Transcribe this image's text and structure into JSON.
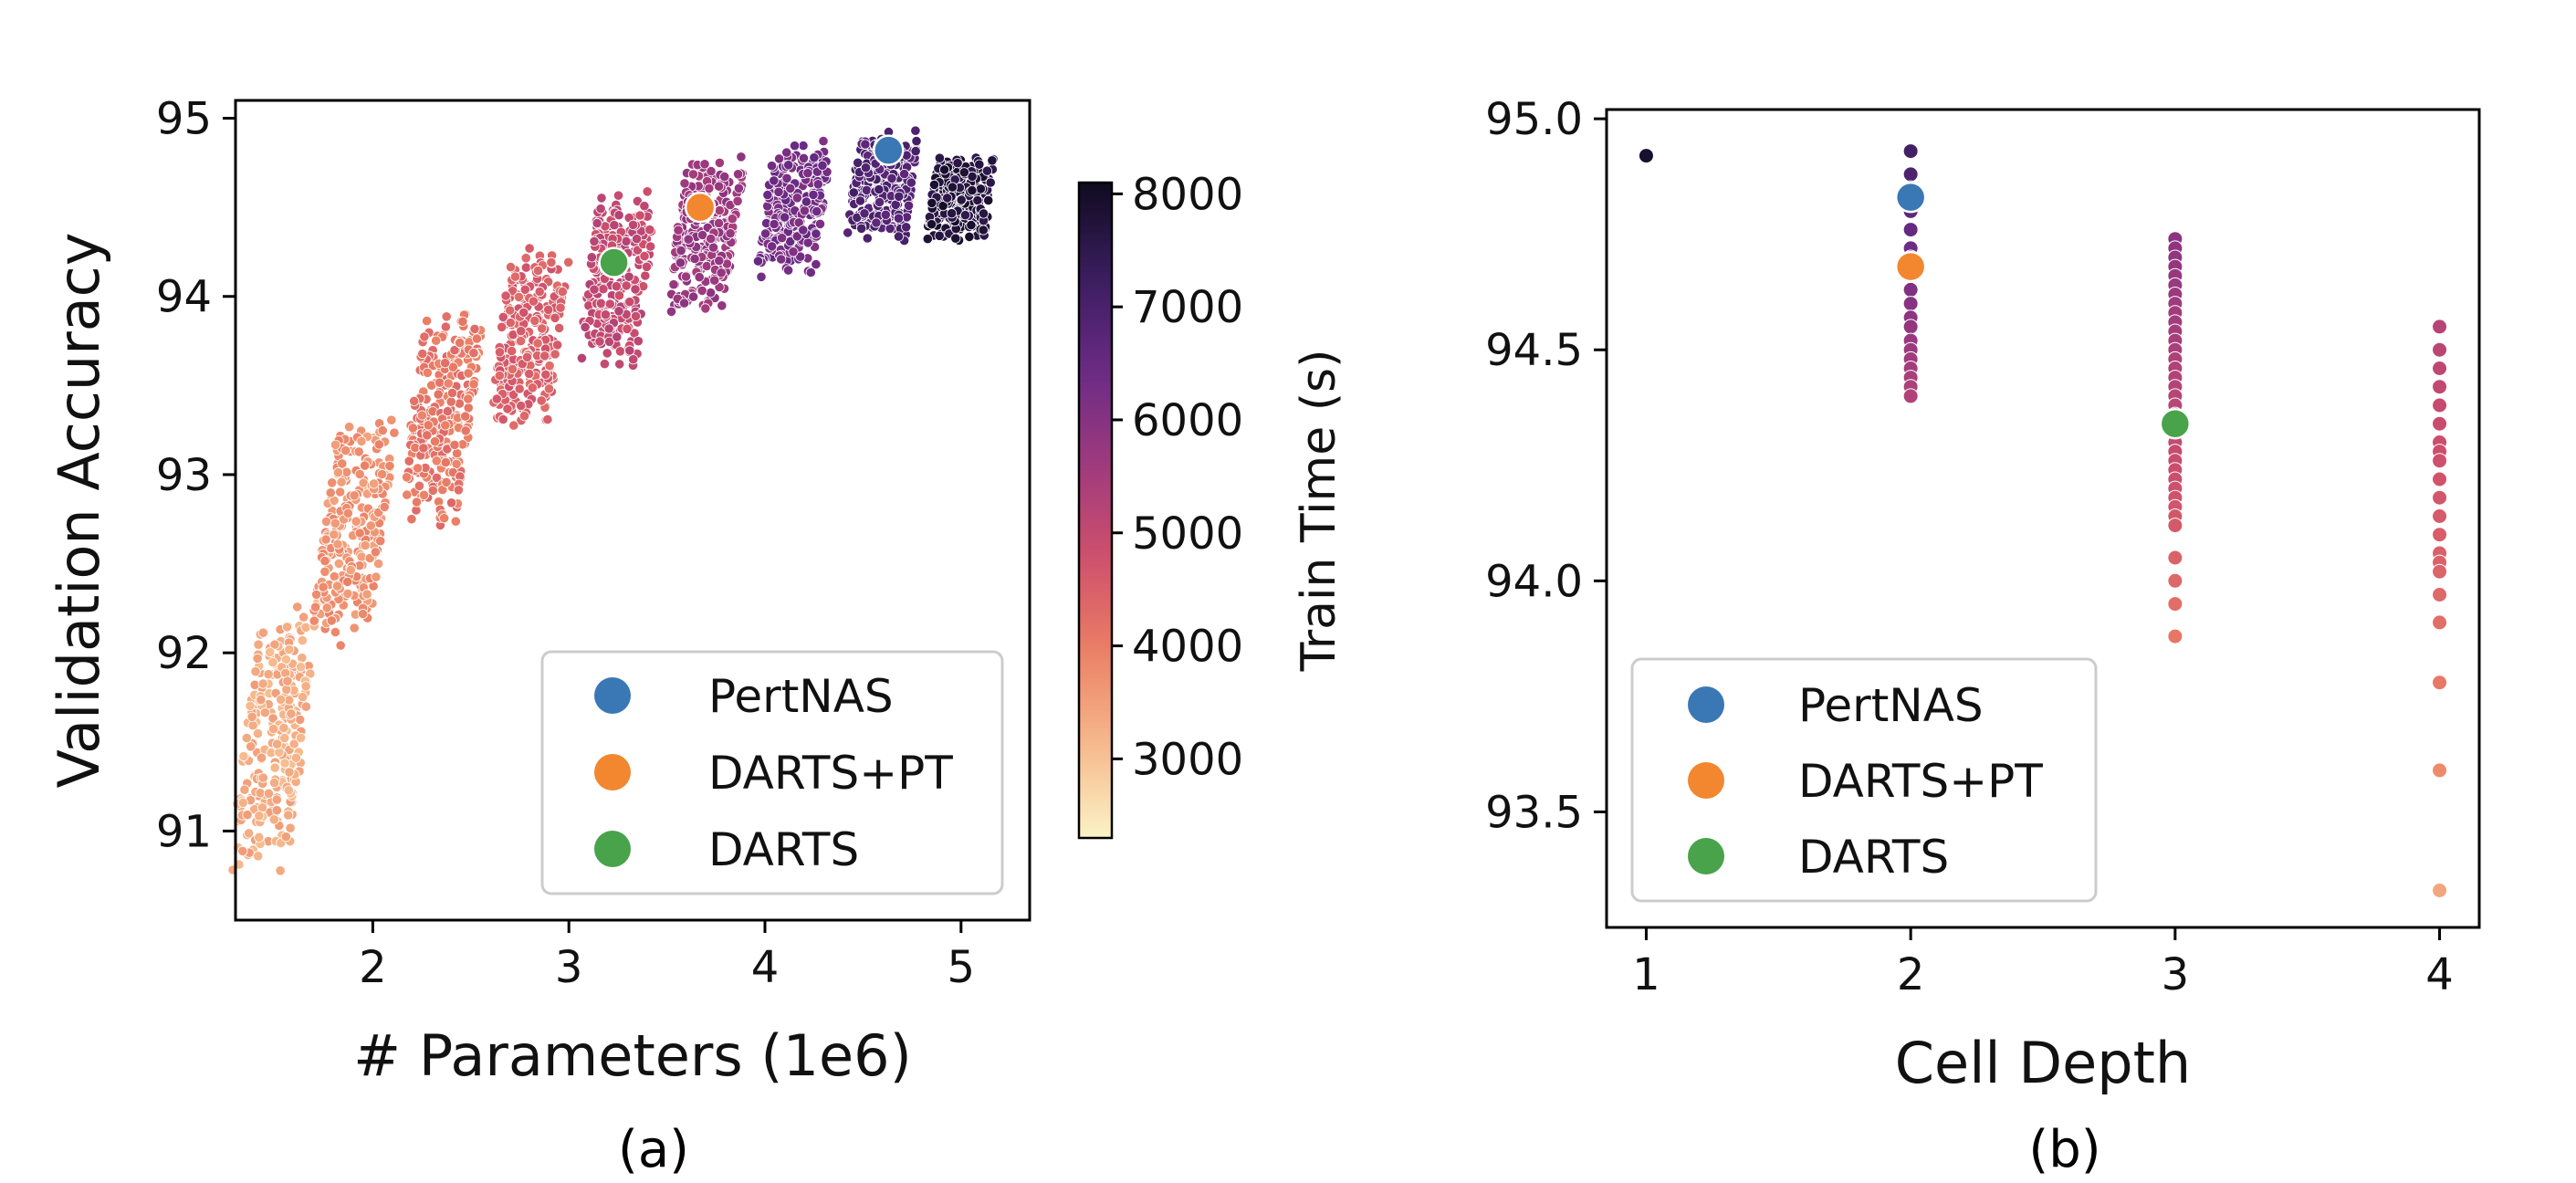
{
  "captions": [
    "(a)",
    "(b)"
  ],
  "chart_data": [
    {
      "type": "scatter",
      "title": "",
      "xlabel": "# Parameters (1e6)",
      "ylabel": "Validation Accuracy",
      "xlim": [
        1.3,
        5.35
      ],
      "ylim": [
        90.5,
        95.1
      ],
      "xticks": [
        2,
        3,
        4,
        5
      ],
      "yticks": [
        91,
        92,
        93,
        94,
        95
      ],
      "grid": false,
      "legend_placement": "lower-right",
      "colorbar": {
        "label": "Train Time (s)",
        "range": [
          2300,
          8100
        ],
        "ticks": [
          3000,
          4000,
          5000,
          6000,
          7000,
          8000
        ],
        "colormap": [
          "#fbf3c6",
          "#f6b98c",
          "#eb7f65",
          "#ce4f6c",
          "#9e3a7e",
          "#6a2a85",
          "#3a1d5e",
          "#0f0b1f"
        ]
      },
      "background_clusters": [
        {
          "x": 1.5,
          "y_min": 90.75,
          "y_max": 92.3,
          "time": 3300
        },
        {
          "x": 1.9,
          "y_min": 92.0,
          "y_max": 93.35,
          "time": 3700
        },
        {
          "x": 2.35,
          "y_min": 92.7,
          "y_max": 93.95,
          "time": 4100
        },
        {
          "x": 2.8,
          "y_min": 93.25,
          "y_max": 94.3,
          "time": 4500
        },
        {
          "x": 3.25,
          "y_min": 93.6,
          "y_max": 94.6,
          "time": 5000
        },
        {
          "x": 3.7,
          "y_min": 93.9,
          "y_max": 94.8,
          "time": 5700
        },
        {
          "x": 4.15,
          "y_min": 94.1,
          "y_max": 94.9,
          "time": 6300
        },
        {
          "x": 4.6,
          "y_min": 94.3,
          "y_max": 94.93,
          "time": 6900
        },
        {
          "x": 5.0,
          "y_min": 94.3,
          "y_max": 94.8,
          "time": 7700
        }
      ],
      "series": [
        {
          "name": "PertNAS",
          "color": "#3a78b5",
          "x": [
            4.63
          ],
          "y": [
            94.82
          ]
        },
        {
          "name": "DARTS+PT",
          "color": "#f2872f",
          "x": [
            3.67
          ],
          "y": [
            94.5
          ]
        },
        {
          "name": "DARTS",
          "color": "#48a34a",
          "x": [
            3.23
          ],
          "y": [
            94.19
          ]
        }
      ]
    },
    {
      "type": "scatter",
      "title": "",
      "xlabel": "Cell Depth",
      "ylabel": "",
      "xlim": [
        0.85,
        4.15
      ],
      "ylim": [
        93.25,
        95.02
      ],
      "xticks": [
        1,
        2,
        3,
        4
      ],
      "yticks": [
        93.5,
        94.0,
        94.5,
        95.0
      ],
      "ytick_labels": [
        "93.5",
        "94.0",
        "94.5",
        "95.0"
      ],
      "grid": false,
      "legend_placement": "lower-left",
      "background_points": [
        {
          "x": 1,
          "y": [
            94.92
          ],
          "time": 7900
        },
        {
          "x": 2,
          "y": [
            94.93,
            94.88,
            94.85,
            94.8,
            94.76,
            94.72,
            94.7,
            94.66,
            94.63,
            94.6,
            94.57,
            94.55,
            94.52,
            94.5,
            94.48,
            94.46,
            94.44,
            94.42,
            94.4
          ],
          "time": 6200
        },
        {
          "x": 3,
          "y": [
            94.74,
            94.72,
            94.7,
            94.68,
            94.66,
            94.64,
            94.62,
            94.6,
            94.58,
            94.56,
            94.54,
            94.52,
            94.5,
            94.48,
            94.46,
            94.44,
            94.42,
            94.4,
            94.38,
            94.36,
            94.3,
            94.28,
            94.26,
            94.24,
            94.22,
            94.2,
            94.18,
            94.16,
            94.14,
            94.12,
            94.05,
            94.0,
            93.95,
            93.88
          ],
          "time": 5000
        },
        {
          "x": 4,
          "y": [
            94.55,
            94.5,
            94.46,
            94.42,
            94.38,
            94.34,
            94.3,
            94.28,
            94.26,
            94.22,
            94.18,
            94.14,
            94.1,
            94.06,
            94.04,
            94.02,
            93.97,
            93.91,
            93.78,
            93.59,
            93.33
          ],
          "time": 4300
        }
      ],
      "series": [
        {
          "name": "PertNAS",
          "color": "#3a78b5",
          "x": [
            2
          ],
          "y": [
            94.83
          ]
        },
        {
          "name": "DARTS+PT",
          "color": "#f2872f",
          "x": [
            2
          ],
          "y": [
            94.68
          ]
        },
        {
          "name": "DARTS",
          "color": "#48a34a",
          "x": [
            3
          ],
          "y": [
            94.34
          ]
        }
      ]
    }
  ]
}
